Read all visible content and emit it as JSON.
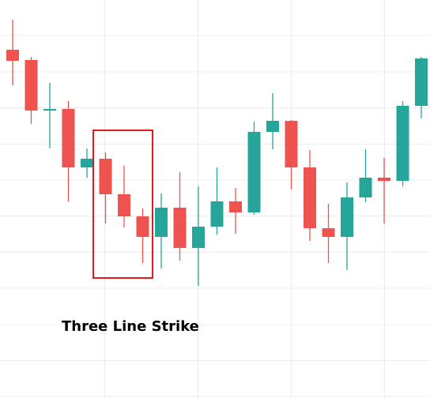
{
  "chart_data": {
    "type": "candlestick",
    "annotation": "Three Line Strike",
    "categories": [
      null,
      null,
      null,
      null,
      null,
      null,
      null,
      null,
      null,
      null,
      null,
      null,
      null,
      null,
      null,
      null,
      null,
      null,
      null,
      null,
      null,
      null,
      null
    ],
    "open": [
      437,
      424,
      360,
      362,
      288,
      299,
      254,
      226,
      200,
      237,
      186,
      213,
      245,
      231,
      333,
      347,
      288,
      211,
      200,
      250,
      275,
      271,
      366
    ],
    "high": [
      475,
      428,
      395,
      372,
      312,
      307,
      290,
      236,
      255,
      282,
      264,
      288,
      262,
      346,
      382,
      348,
      310,
      242,
      269,
      311,
      300,
      372,
      428
    ],
    "low": [
      392,
      343,
      312,
      245,
      275,
      217,
      212,
      167,
      160,
      170,
      138,
      203,
      204,
      228,
      311,
      260,
      195,
      167,
      158,
      244,
      217,
      264,
      350
    ],
    "close": [
      423,
      360,
      362,
      288,
      299,
      254,
      226,
      200,
      237,
      186,
      213,
      245,
      231,
      333,
      347,
      288,
      211,
      200,
      250,
      275,
      271,
      366,
      426
    ],
    "up_color": "#26a69a",
    "down_color": "#ef5350",
    "ylim": [
      0,
      500
    ]
  }
}
